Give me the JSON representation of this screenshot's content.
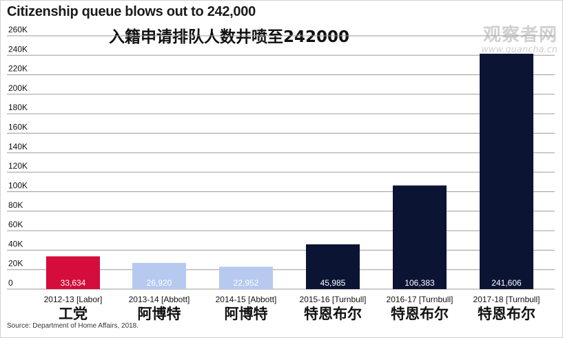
{
  "chart_data": {
    "type": "bar",
    "title": "Citizenship queue blows out to 242,000",
    "subtitle": "入籍申请排队人数井喷至242000",
    "categories": [
      "2012-13 [Labor]",
      "2013-14 [Abbott]",
      "2014-15 [Abbott]",
      "2015-16 [Turnbull]",
      "2016-17 [Turnbull]",
      "2017-18 [Turnbull]"
    ],
    "category_labels_cn": [
      "工党",
      "阿博特",
      "阿博特",
      "特恩布尔",
      "特恩布尔",
      "特恩布尔"
    ],
    "values": [
      33634,
      26920,
      22952,
      45985,
      106383,
      241606
    ],
    "value_labels": [
      "33,634",
      "26,920",
      "22,952",
      "45,985",
      "106,383",
      "241,606"
    ],
    "bar_colors": [
      "#d40d3c",
      "#b7c9ef",
      "#b7c9ef",
      "#0c1433",
      "#0c1433",
      "#0c1433"
    ],
    "ylim": [
      0,
      260000
    ],
    "yticks": [
      0,
      20000,
      40000,
      60000,
      80000,
      100000,
      120000,
      140000,
      160000,
      180000,
      200000,
      220000,
      240000,
      260000
    ],
    "ytick_labels": [
      "0",
      "20K",
      "40K",
      "60K",
      "80K",
      "100K",
      "120K",
      "140K",
      "160K",
      "180K",
      "200K",
      "220K",
      "240K",
      "260K"
    ],
    "grid": true,
    "xlabel": "",
    "ylabel": ""
  },
  "source": "Source: Department of Home Affairs, 2018.",
  "watermark": {
    "text_cn": "观察者网",
    "url": "www.guancha.cn"
  },
  "colors": {
    "grid": "#9a9a9a",
    "label_text": "#ffffff"
  }
}
